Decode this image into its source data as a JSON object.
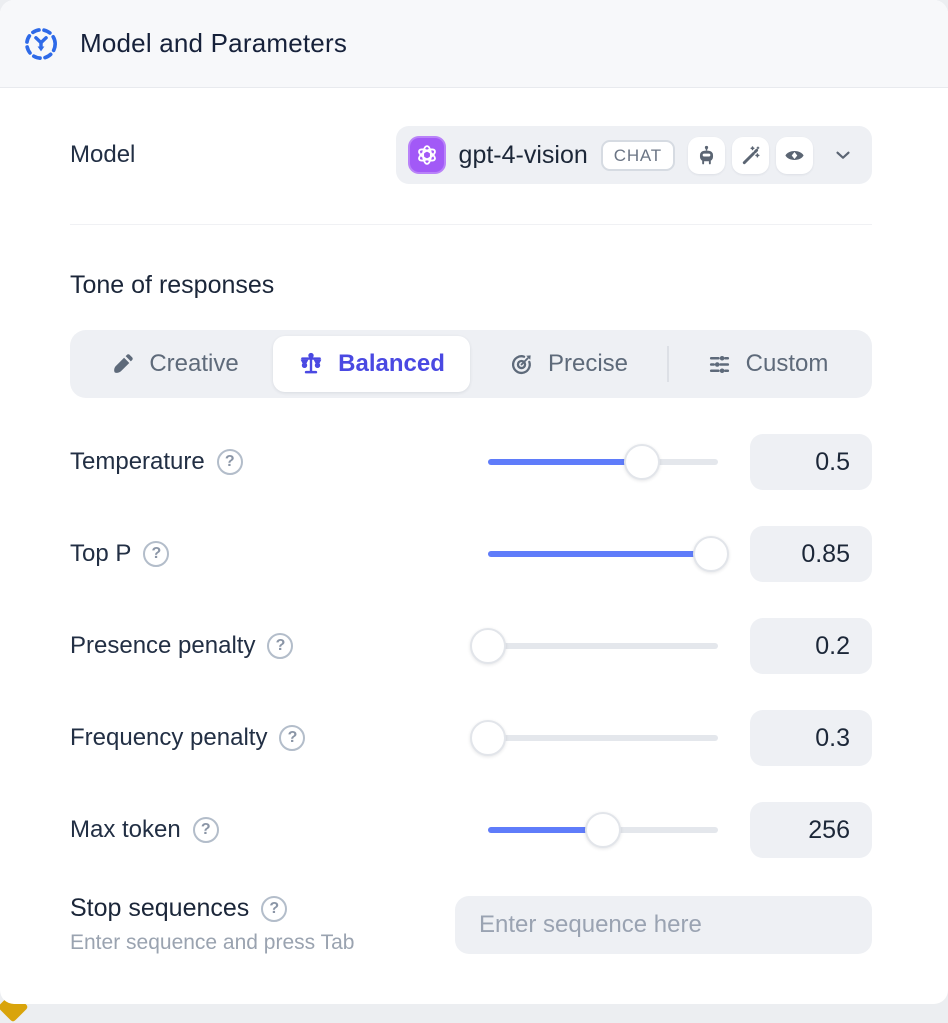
{
  "header": {
    "title": "Model and Parameters"
  },
  "model": {
    "label": "Model",
    "selected": "gpt-4-vision",
    "badge": "CHAT",
    "capability_icons": [
      "robot-icon",
      "magic-wand-icon",
      "vision-eye-icon"
    ],
    "provider_icon": "openai-logo"
  },
  "tone": {
    "heading": "Tone of responses",
    "tabs": [
      {
        "label": "Creative",
        "icon": "paintbrush-icon",
        "selected": false
      },
      {
        "label": "Balanced",
        "icon": "balance-scale-icon",
        "selected": true
      },
      {
        "label": "Precise",
        "icon": "target-icon",
        "selected": false
      },
      {
        "label": "Custom",
        "icon": "sliders-icon",
        "selected": false
      }
    ]
  },
  "parameters": [
    {
      "label": "Temperature",
      "value": "0.5",
      "fill_percent": 67
    },
    {
      "label": "Top P",
      "value": "0.85",
      "fill_percent": 97
    },
    {
      "label": "Presence penalty",
      "value": "0.2",
      "fill_percent": 0
    },
    {
      "label": "Frequency penalty",
      "value": "0.3",
      "fill_percent": 0
    },
    {
      "label": "Max token",
      "value": "256",
      "fill_percent": 50
    }
  ],
  "stop_sequences": {
    "label": "Stop sequences",
    "hint": "Enter sequence and press Tab",
    "placeholder": "Enter sequence here"
  },
  "colors": {
    "accent_blue": "#5f7cfa",
    "selected_indigo": "#4a49e2",
    "header_icon_blue": "#2e6ae8",
    "openai_purple": "#a259f7",
    "corner_yellow": "#d9a40b"
  }
}
